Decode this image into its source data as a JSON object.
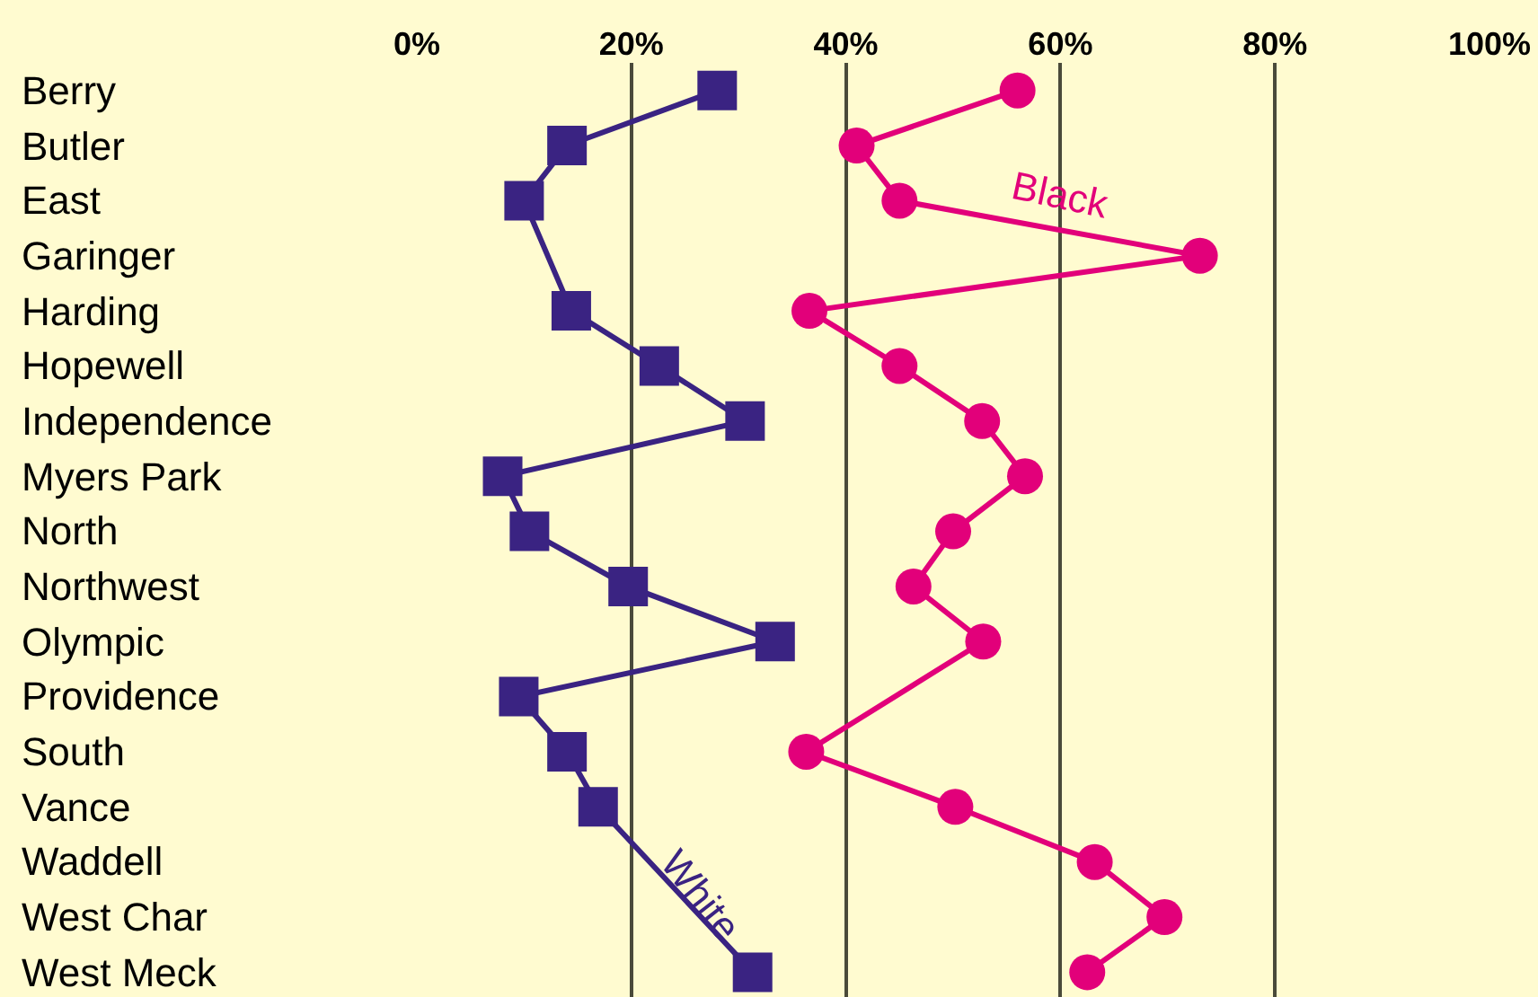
{
  "chart_data": {
    "type": "line",
    "orientation": "horizontal",
    "categories": [
      "Berry",
      "Butler",
      "East",
      "Garinger",
      "Harding",
      "Hopewell",
      "Independence",
      "Myers Park",
      "North",
      "Northwest",
      "Olympic",
      "Providence",
      "South",
      "Vance",
      "Waddell",
      "West Char",
      "West Meck"
    ],
    "series": [
      {
        "name": "White",
        "color": "#3a2382",
        "marker": "square",
        "values": [
          28,
          14,
          10,
          null,
          14.4,
          22.6,
          30.6,
          8,
          10.5,
          19.7,
          33.4,
          9.5,
          14,
          16.9,
          null,
          null,
          31.3
        ]
      },
      {
        "name": "Black",
        "color": "#e2007a",
        "marker": "circle",
        "values": [
          56,
          41,
          45,
          73,
          36.6,
          45,
          52.7,
          56.7,
          50,
          46.3,
          52.8,
          null,
          36.3,
          50.2,
          63.2,
          69.7,
          62.5
        ]
      }
    ],
    "xlim": [
      0,
      100
    ],
    "xticks": [
      {
        "value": 0,
        "label": "0%"
      },
      {
        "value": 20,
        "label": "20%"
      },
      {
        "value": 40,
        "label": "40%"
      },
      {
        "value": 60,
        "label": "60%"
      },
      {
        "value": 80,
        "label": "80%"
      },
      {
        "value": 100,
        "label": "100%"
      }
    ],
    "grid": "x",
    "legend": false,
    "line_style": "solid"
  }
}
